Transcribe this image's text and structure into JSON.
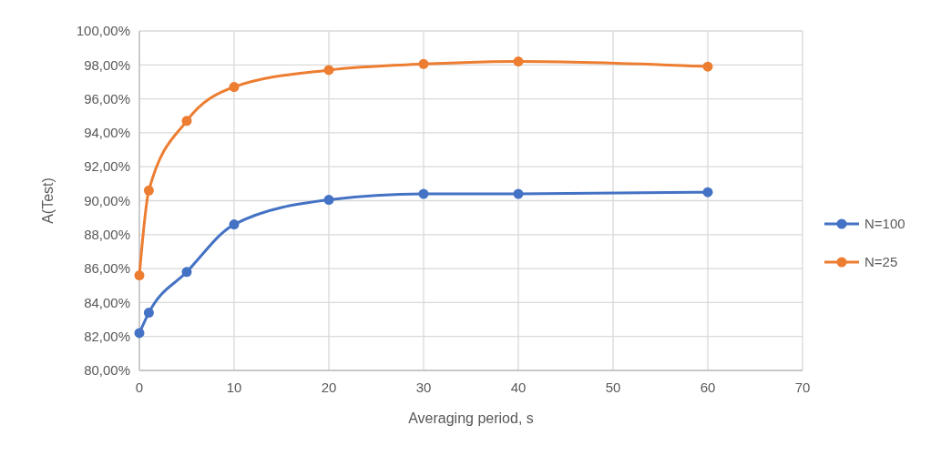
{
  "chart_data": {
    "type": "line",
    "xlabel": "Averaging period, s",
    "ylabel": "A(Test)",
    "x": [
      0,
      1,
      5,
      10,
      20,
      30,
      40,
      60
    ],
    "series": [
      {
        "name": "N=100",
        "color": "#4472c4",
        "values": [
          82.2,
          83.4,
          85.8,
          88.6,
          90.05,
          90.4,
          90.4,
          90.5
        ]
      },
      {
        "name": "N=25",
        "color": "#ed7d31",
        "values": [
          85.6,
          90.6,
          94.7,
          96.7,
          97.7,
          98.05,
          98.2,
          97.9
        ]
      }
    ],
    "xlim": [
      0,
      70
    ],
    "xticks": [
      0,
      10,
      20,
      30,
      40,
      50,
      60,
      70
    ],
    "ylim": [
      80,
      100
    ],
    "yticks": [
      {
        "value": 80,
        "label": "80,00%"
      },
      {
        "value": 82,
        "label": "82,00%"
      },
      {
        "value": 84,
        "label": "84,00%"
      },
      {
        "value": 86,
        "label": "86,00%"
      },
      {
        "value": 88,
        "label": "88,00%"
      },
      {
        "value": 90,
        "label": "90,00%"
      },
      {
        "value": 92,
        "label": "92,00%"
      },
      {
        "value": 94,
        "label": "94,00%"
      },
      {
        "value": 96,
        "label": "96,00%"
      },
      {
        "value": 98,
        "label": "98,00%"
      },
      {
        "value": 100,
        "label": "100,00%"
      }
    ],
    "grid": true,
    "legend": "right",
    "marker": "circle",
    "line_style": "solid"
  }
}
